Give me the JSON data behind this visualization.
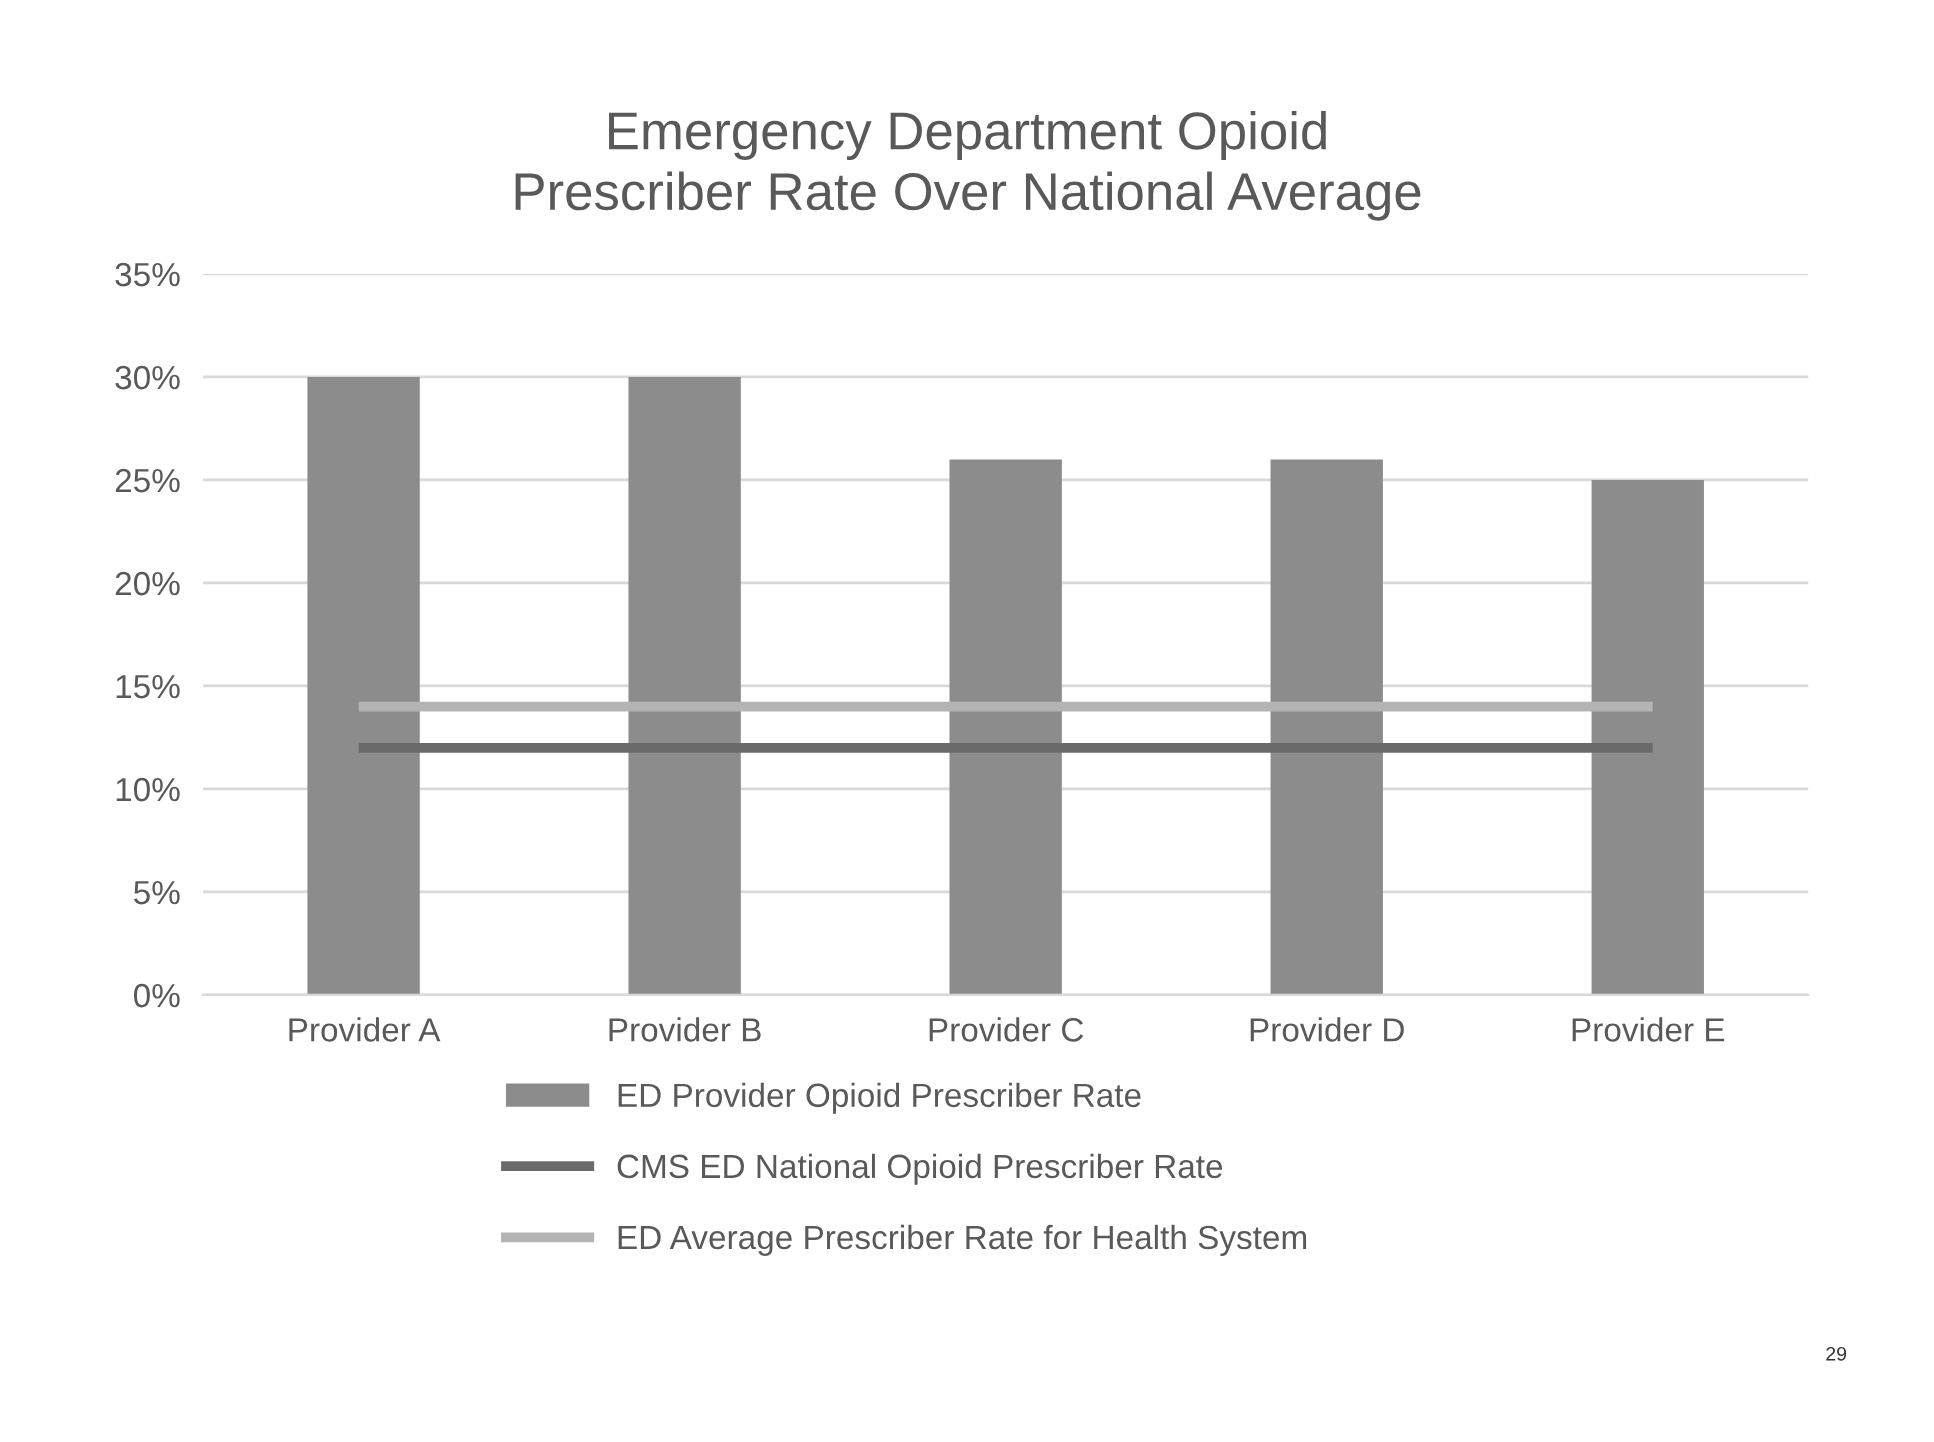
{
  "chart_data": {
    "type": "bar",
    "title": "Emergency Department Opioid Prescriber Rate Over National Average",
    "categories": [
      "Provider A",
      "Provider B",
      "Provider C",
      "Provider D",
      "Provider E"
    ],
    "series": [
      {
        "name": "ED Provider Opioid Prescriber Rate",
        "color": "#8c8c8c",
        "values": [
          30,
          30,
          26,
          26,
          25
        ]
      },
      {
        "name": "CMS ED National Opioid Prescriber Rate",
        "type": "line",
        "color": "#6a6a6a",
        "values": [
          12,
          12,
          12,
          12,
          12
        ]
      },
      {
        "name": "ED Average Prescriber Rate for Health System",
        "type": "line",
        "color": "#b4b4b4",
        "values": [
          14,
          14,
          14,
          14,
          14
        ]
      }
    ],
    "ylim": [
      0,
      35
    ],
    "yticks": [
      {
        "value": 0,
        "label": "0%"
      },
      {
        "value": 5,
        "label": "5%"
      },
      {
        "value": 10,
        "label": "10%"
      },
      {
        "value": 15,
        "label": "15%"
      },
      {
        "value": 20,
        "label": "20%"
      },
      {
        "value": 25,
        "label": "25%"
      },
      {
        "value": 30,
        "label": "30%"
      },
      {
        "value": 35,
        "label": "35%"
      }
    ],
    "grid": "y",
    "legend": "bottom",
    "annotations": [
      "29"
    ]
  }
}
